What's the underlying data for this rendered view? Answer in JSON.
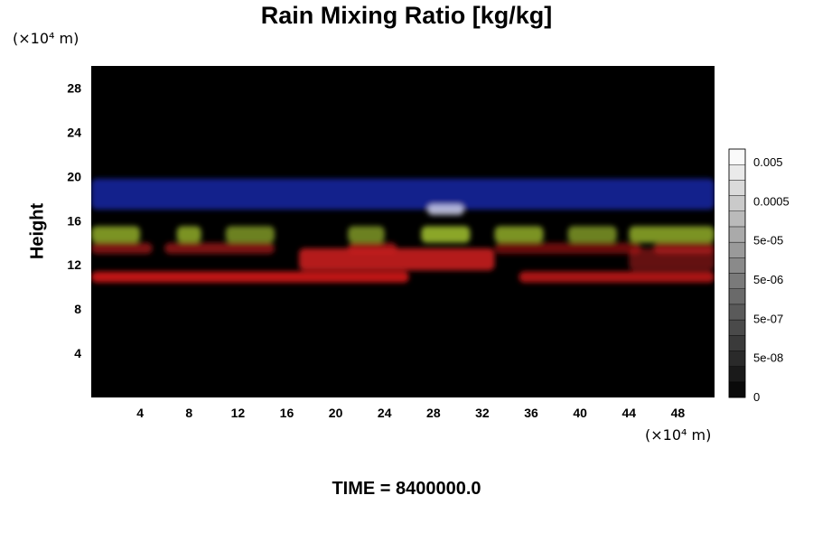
{
  "chart_data": {
    "type": "heatmap",
    "title": "Rain Mixing Ratio [kg/kg]",
    "ylabel": "Height",
    "xlabel": "",
    "y_unit_label": "(×10⁴ m)",
    "x_unit_label": "(×10⁴ m)",
    "footer": "TIME = 8400000.0",
    "xlim": [
      0,
      51
    ],
    "ylim": [
      0,
      30
    ],
    "x_ticks": [
      "4",
      "8",
      "12",
      "16",
      "20",
      "24",
      "28",
      "32",
      "36",
      "40",
      "44",
      "48"
    ],
    "y_ticks": [
      "4",
      "8",
      "12",
      "16",
      "20",
      "24",
      "28"
    ],
    "colorbar_ticks": [
      "0.005",
      "0.0005",
      "5e-05",
      "5e-06",
      "5e-07",
      "5e-08",
      "0"
    ],
    "colorbar_levels": 16,
    "grid": false,
    "background_color": "#000000",
    "layers": [
      {
        "color": "#1f2fc8",
        "y_range": [
          17,
          19.8
        ],
        "cells": [
          [
            0,
            51,
            0.7
          ]
        ]
      },
      {
        "color": "#d7d9f5",
        "y_range": [
          16.5,
          17.5
        ],
        "cells": [
          [
            27.5,
            30.5,
            0.8
          ]
        ]
      },
      {
        "color": "#9ab82d",
        "y_range": [
          14,
          15.5
        ],
        "cells": [
          [
            0,
            4,
            0.8
          ],
          [
            7,
            9,
            0.8
          ],
          [
            11,
            15,
            0.7
          ],
          [
            21,
            24,
            0.7
          ],
          [
            27,
            31,
            0.9
          ],
          [
            33,
            37,
            0.8
          ],
          [
            39,
            43,
            0.7
          ],
          [
            44,
            51,
            0.8
          ]
        ]
      },
      {
        "color": "#b11919",
        "y_range": [
          13,
          14
        ],
        "cells": [
          [
            0,
            5,
            0.7
          ],
          [
            6,
            15,
            0.7
          ],
          [
            21,
            25,
            0.8
          ],
          [
            33,
            45,
            0.6
          ],
          [
            46,
            51,
            0.7
          ]
        ]
      },
      {
        "color": "#c81e1e",
        "y_range": [
          11.5,
          13.5
        ],
        "cells": [
          [
            17,
            33,
            0.9
          ],
          [
            44,
            51,
            0.5
          ]
        ]
      },
      {
        "color": "#d31616",
        "y_range": [
          10.4,
          11.4
        ],
        "cells": [
          [
            0,
            26,
            0.9
          ],
          [
            35,
            51,
            0.8
          ]
        ]
      }
    ]
  }
}
